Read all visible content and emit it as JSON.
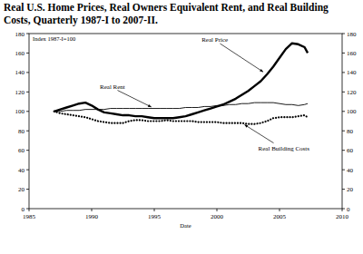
{
  "chart_data": {
    "type": "line",
    "title": "Real U.S. Home Prices, Real Owners Equivalent Rent, and Real Building Costs, Quarterly 1987-I to 2007-II.",
    "ylabel": "Index 1987-I=100",
    "xlabel": "Date",
    "x": [
      1987,
      1987.5,
      1988,
      1988.5,
      1989,
      1989.5,
      1990,
      1990.5,
      1991,
      1991.5,
      1992,
      1992.5,
      1993,
      1993.5,
      1994,
      1994.5,
      1995,
      1995.5,
      1996,
      1996.5,
      1997,
      1997.5,
      1998,
      1998.5,
      1999,
      1999.5,
      2000,
      2000.5,
      2001,
      2001.5,
      2002,
      2002.5,
      2003,
      2003.5,
      2004,
      2004.5,
      2005,
      2005.5,
      2006,
      2006.5,
      2007,
      2007.25
    ],
    "series": [
      {
        "name": "Real Price",
        "color": "#000000",
        "line_style": "thick",
        "values": [
          100,
          102,
          104,
          106,
          108,
          109,
          106,
          102,
          99,
          98,
          97,
          96,
          96,
          95,
          95,
          94,
          93,
          93,
          93,
          93,
          94,
          95,
          97,
          99,
          101,
          103,
          105,
          107,
          110,
          113,
          117,
          121,
          126,
          131,
          138,
          146,
          155,
          164,
          170,
          169,
          166,
          160
        ]
      },
      {
        "name": "Real Rent",
        "color": "#000000",
        "line_style": "solid",
        "values": [
          100,
          100,
          101,
          101,
          101,
          102,
          102,
          102,
          102,
          103,
          103,
          103,
          103,
          103,
          103,
          103,
          103,
          103,
          103,
          103,
          103,
          104,
          104,
          104,
          105,
          105,
          106,
          106,
          107,
          107,
          108,
          108,
          109,
          109,
          109,
          109,
          108,
          107,
          107,
          106,
          107,
          108
        ]
      },
      {
        "name": "Real Building Costs",
        "color": "#000000",
        "line_style": "dotted",
        "values": [
          100,
          98,
          97,
          96,
          95,
          94,
          92,
          90,
          89,
          88,
          88,
          88,
          90,
          91,
          91,
          90,
          90,
          90,
          91,
          90,
          90,
          90,
          90,
          89,
          89,
          89,
          89,
          88,
          88,
          88,
          88,
          87,
          87,
          88,
          90,
          93,
          94,
          94,
          94,
          95,
          96,
          94
        ]
      }
    ],
    "xlim": [
      1985,
      2010
    ],
    "xticks": [
      1985,
      1990,
      1995,
      2000,
      2005,
      2010
    ],
    "ylim": [
      0,
      180
    ],
    "yticks": [
      0,
      20,
      40,
      60,
      80,
      100,
      120,
      140,
      160,
      180
    ],
    "y2lim": [
      0,
      180
    ],
    "y2ticks": [
      0,
      20,
      40,
      60,
      80,
      100,
      120,
      140,
      160,
      180
    ],
    "grid": false
  }
}
